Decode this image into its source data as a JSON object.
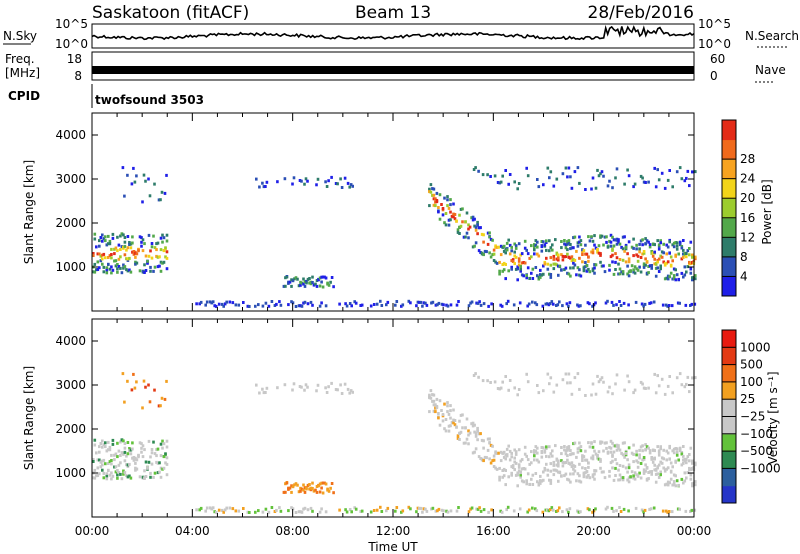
{
  "header": {
    "radar": "Saskatoon (fitACF)",
    "beam": "Beam 13",
    "date": "28/Feb/2016"
  },
  "status_panels": {
    "nsky_label": "N.Sky",
    "nsky_ticks": [
      "10^5",
      "10^0"
    ],
    "nsearch_label": "N.Search",
    "nsearch_ticks": [
      "10^5",
      "10^0"
    ],
    "freq_label_line1": "Freq.",
    "freq_label_line2": "[MHz]",
    "freq_ticks": [
      "18",
      "8"
    ],
    "nave_label": "Nave",
    "nave_ticks": [
      "60",
      "0"
    ],
    "cpid_label": "CPID",
    "cpid_program": "twofsound 3503",
    "accent_color": "#000000"
  },
  "chart_data": [
    {
      "type": "heatmap",
      "name": "power",
      "ylabel": "Slant Range [km]",
      "ylim": [
        0,
        4500
      ],
      "yticks": [
        "1000",
        "2000",
        "3000",
        "4000"
      ],
      "xlim_hours": [
        0,
        24
      ],
      "xticks": [
        "00:00",
        "04:00",
        "08:00",
        "12:00",
        "16:00",
        "20:00",
        "00:00"
      ],
      "colorbar": {
        "label": "Power [dB]",
        "ticks": [
          "4",
          "8",
          "12",
          "16",
          "20",
          "24",
          "28"
        ],
        "colors": [
          "#1f1fe8",
          "#2b4fb5",
          "#2e7c6a",
          "#52a84a",
          "#9ccc2e",
          "#f2d41a",
          "#f7a320",
          "#f06a1c",
          "#e32b17"
        ]
      },
      "features": [
        {
          "label": "near-range echoes",
          "hours": [
            0,
            3.0
          ],
          "range_km": [
            900,
            1900
          ],
          "peak_db": 24
        },
        {
          "label": "E-region / ground echoes",
          "hours": [
            7.5,
            9.5
          ],
          "range_km": [
            500,
            800
          ],
          "peak_db": 16
        },
        {
          "label": "descending backscatter band",
          "hours": [
            13.5,
            16
          ],
          "range_km": [
            1000,
            2500
          ],
          "peak_db": 20
        },
        {
          "label": "evening band",
          "hours": [
            16,
            24
          ],
          "range_km": [
            950,
            1400
          ],
          "peak_db": 28
        }
      ]
    },
    {
      "type": "heatmap",
      "name": "velocity",
      "ylabel": "Slant Range [km]",
      "ylim": [
        0,
        4500
      ],
      "yticks": [
        "1000",
        "2000",
        "3000",
        "4000"
      ],
      "xlabel": "Time UT",
      "xlim_hours": [
        0,
        24
      ],
      "xticks": [
        "00:00",
        "04:00",
        "08:00",
        "12:00",
        "16:00",
        "20:00",
        "00:00"
      ],
      "colorbar": {
        "label": "Velocity [m s⁻¹]",
        "ticks": [
          "1000",
          "500",
          "100",
          "25",
          "−25",
          "−100",
          "−500",
          "−1000"
        ],
        "colors": [
          "#2535c8",
          "#2c5f9e",
          "#2e8a52",
          "#62c23a",
          "#c8c8c8",
          "#c8c8c8",
          "#f2a020",
          "#f07018",
          "#e33a14",
          "#e81a10"
        ]
      },
      "features": [
        {
          "label": "ground scatter band",
          "hours": [
            13.5,
            24
          ],
          "range_km": [
            900,
            2000
          ],
          "velocity": 0
        },
        {
          "label": "E-region slow echoes",
          "hours": [
            7.5,
            9.5
          ],
          "range_km": [
            500,
            800
          ],
          "velocity": -300
        }
      ]
    }
  ]
}
